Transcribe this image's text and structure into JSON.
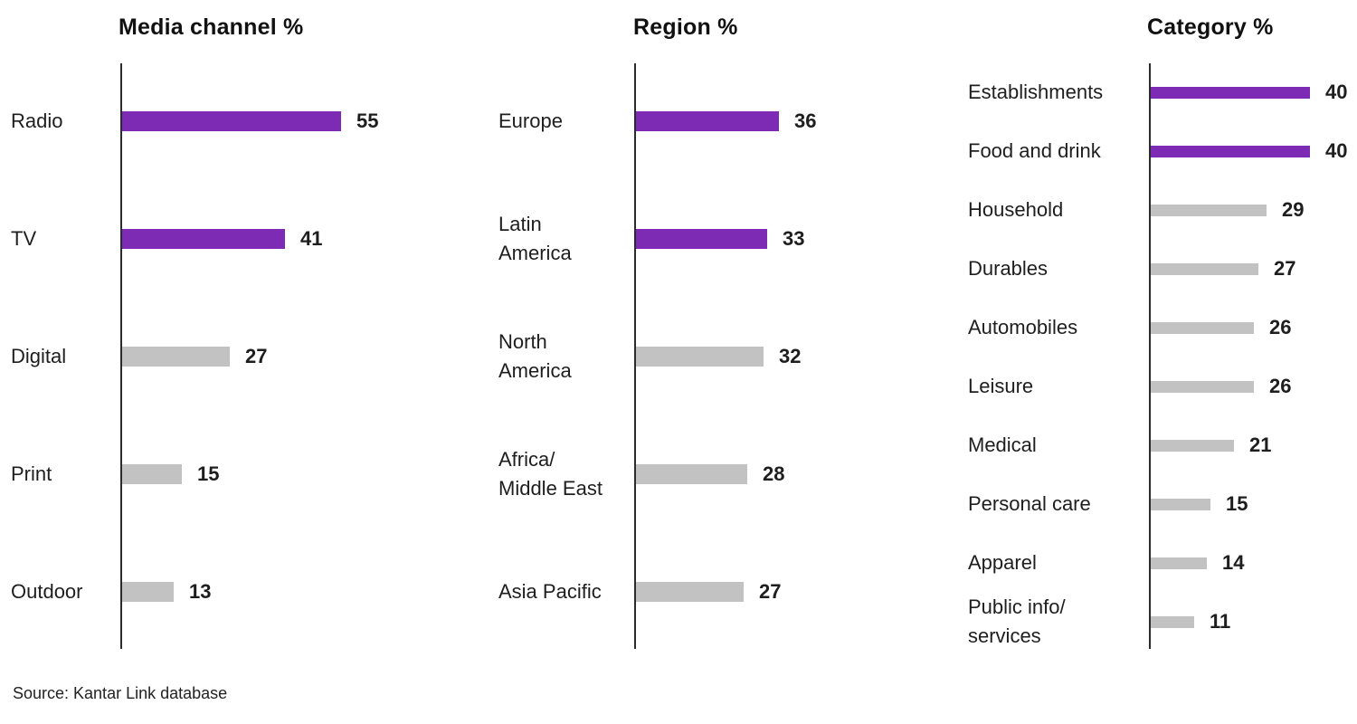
{
  "page": {
    "source": "Source: Kantar Link database"
  },
  "colors": {
    "highlight": "#7D2BB4",
    "base": "#C2C2C2",
    "text": "#1E1E1E",
    "axis": "#2B2B2B"
  },
  "chart_data": [
    {
      "type": "bar",
      "orientation": "horizontal",
      "title": "Media channel %",
      "categories": [
        "Radio",
        "TV",
        "Digital",
        "Print",
        "Outdoor"
      ],
      "values": [
        55,
        41,
        27,
        15,
        13
      ],
      "highlighted": [
        true,
        true,
        false,
        false,
        false
      ],
      "xlim": [
        0,
        60
      ],
      "grid": false,
      "legend": "none",
      "value_labels": "end-of-bar"
    },
    {
      "type": "bar",
      "orientation": "horizontal",
      "title": "Region %",
      "categories": [
        "Europe",
        "Latin\nAmerica",
        "North\nAmerica",
        "Africa/\nMiddle East",
        "Asia Pacific"
      ],
      "values": [
        36,
        33,
        32,
        28,
        27
      ],
      "highlighted": [
        true,
        true,
        false,
        false,
        false
      ],
      "xlim": [
        0,
        60
      ],
      "grid": false,
      "legend": "none",
      "value_labels": "end-of-bar"
    },
    {
      "type": "bar",
      "orientation": "horizontal",
      "title": "Category %",
      "categories": [
        "Establishments",
        "Food and drink",
        "Household",
        "Durables",
        "Automobiles",
        "Leisure",
        "Medical",
        "Personal care",
        "Apparel",
        "Public info/\nservices"
      ],
      "values": [
        40,
        40,
        29,
        27,
        26,
        26,
        21,
        15,
        14,
        11
      ],
      "highlighted": [
        true,
        true,
        false,
        false,
        false,
        false,
        false,
        false,
        false,
        false
      ],
      "xlim": [
        0,
        60
      ],
      "grid": false,
      "legend": "none",
      "value_labels": "end-of-bar"
    }
  ]
}
